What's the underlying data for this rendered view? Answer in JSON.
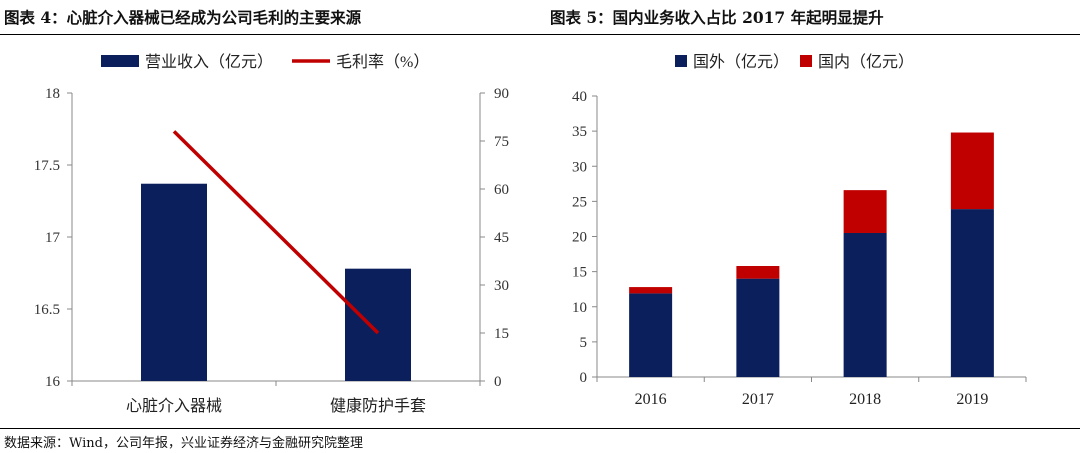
{
  "figures": {
    "left_title": "图表 4：心脏介入器械已经成为公司毛利的主要来源",
    "right_title": "图表 5：国内业务收入占比 2017 年起明显提升"
  },
  "source_note": "数据来源：Wind，公司年报，兴业证券经济与金融研究院整理",
  "colors": {
    "navy": "#0a1f5c",
    "red": "#c00000",
    "axis": "#888888",
    "tick_text": "#333333"
  },
  "chart_data": [
    {
      "type": "bar",
      "categories": [
        "心脏介入器械",
        "健康防护手套"
      ],
      "series": [
        {
          "name": "营业收入（亿元）",
          "type": "bar",
          "axis": "left",
          "values": [
            17.37,
            16.78
          ]
        },
        {
          "name": "毛利率（%）",
          "type": "line",
          "axis": "right",
          "values": [
            78,
            15
          ]
        }
      ],
      "ylim": [
        16,
        18
      ],
      "yticks": [
        "16",
        "16.5",
        "17",
        "17.5",
        "18"
      ],
      "y2lim": [
        0,
        90
      ],
      "y2ticks": [
        "0",
        "15",
        "30",
        "45",
        "60",
        "75",
        "90"
      ],
      "legend": "top",
      "grid": false
    },
    {
      "type": "bar",
      "stacked": true,
      "categories": [
        "2016",
        "2017",
        "2018",
        "2019"
      ],
      "series": [
        {
          "name": "国外（亿元）",
          "values": [
            11.9,
            14.0,
            20.5,
            23.9
          ]
        },
        {
          "name": "国内（亿元）",
          "values": [
            0.9,
            1.8,
            6.1,
            10.9
          ]
        }
      ],
      "ylim": [
        0,
        40
      ],
      "yticks": [
        "0",
        "5",
        "10",
        "15",
        "20",
        "25",
        "30",
        "35",
        "40"
      ],
      "legend": "top",
      "grid": false
    }
  ]
}
